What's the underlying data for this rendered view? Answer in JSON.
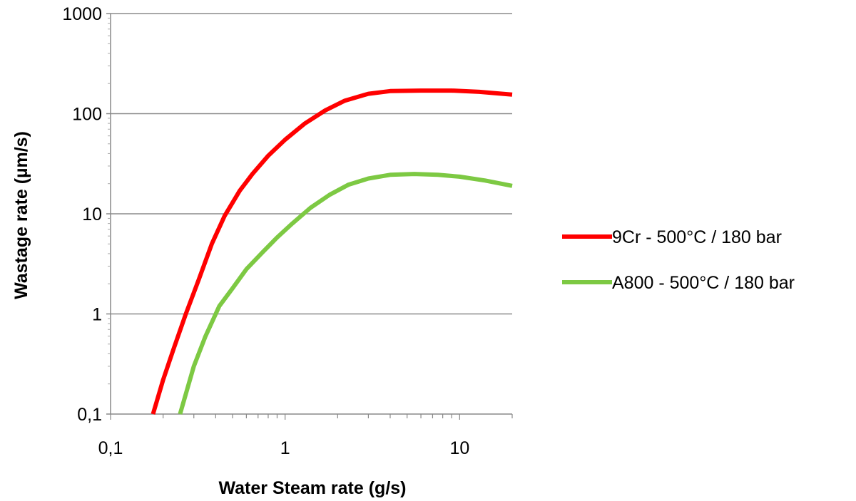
{
  "chart_data": {
    "type": "line",
    "title": "",
    "xlabel": "Water Steam rate (g/s)",
    "ylabel": "Wastage rate (µm/s)",
    "x_scale": "log",
    "y_scale": "log",
    "xlim": [
      0.1,
      20
    ],
    "ylim": [
      0.1,
      1000
    ],
    "x_ticks": [
      {
        "value": 0.1,
        "label": "0,1"
      },
      {
        "value": 1,
        "label": "1"
      },
      {
        "value": 10,
        "label": "10"
      }
    ],
    "y_ticks": [
      {
        "value": 0.1,
        "label": "0,1"
      },
      {
        "value": 1,
        "label": "1"
      },
      {
        "value": 10,
        "label": "10"
      },
      {
        "value": 100,
        "label": "100"
      },
      {
        "value": 1000,
        "label": "1000"
      }
    ],
    "grid": "horizontal",
    "legend_position": "right",
    "series": [
      {
        "name": "9Cr - 500°C / 180 bar",
        "color": "#ff0000",
        "x": [
          0.175,
          0.2,
          0.23,
          0.27,
          0.32,
          0.38,
          0.45,
          0.55,
          0.65,
          0.8,
          1.0,
          1.3,
          1.7,
          2.2,
          3.0,
          4.0,
          6.0,
          9.0,
          13.0,
          20.0
        ],
        "y": [
          0.1,
          0.22,
          0.45,
          1.0,
          2.2,
          5.0,
          9.5,
          17.0,
          25.0,
          38.0,
          55.0,
          80.0,
          108.0,
          135.0,
          158.0,
          168.0,
          170.0,
          170.0,
          165.0,
          155.0
        ]
      },
      {
        "name": "A800 - 500°C / 180 bar",
        "color": "#7dc943",
        "x": [
          0.25,
          0.3,
          0.35,
          0.42,
          0.5,
          0.6,
          0.75,
          0.9,
          1.1,
          1.4,
          1.8,
          2.3,
          3.0,
          4.0,
          5.5,
          7.5,
          10.0,
          14.0,
          20.0
        ],
        "y": [
          0.1,
          0.3,
          0.6,
          1.2,
          1.8,
          2.8,
          4.2,
          5.8,
          8.0,
          11.5,
          15.5,
          19.5,
          22.5,
          24.5,
          25.0,
          24.5,
          23.5,
          21.5,
          19.0
        ]
      }
    ]
  }
}
